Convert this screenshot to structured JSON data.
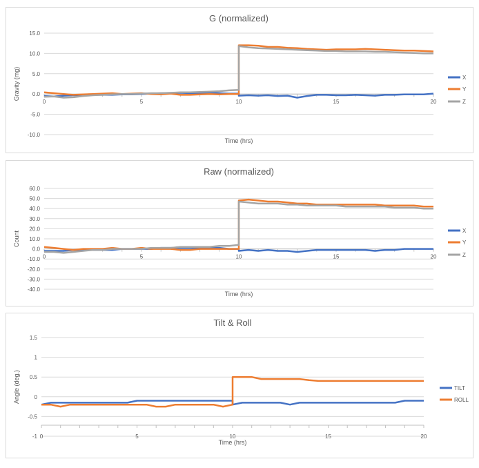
{
  "chart_data": [
    {
      "type": "line",
      "title": "G (normalized)",
      "xlabel": "Time (hrs)",
      "ylabel": "Gravity (mg)",
      "xlim": [
        0,
        20
      ],
      "ylim": [
        -10,
        15
      ],
      "xticks": [
        0,
        5,
        10,
        15,
        20
      ],
      "yticks": [
        "15.0",
        "10.0",
        "5.0",
        "0.0",
        "-5.0",
        "-10.0"
      ],
      "grid": true,
      "legend": "right",
      "x": [
        0,
        0.5,
        1,
        1.5,
        2,
        2.5,
        3,
        3.5,
        4,
        4.5,
        5,
        5.5,
        6,
        6.5,
        7,
        7.5,
        8,
        8.5,
        9,
        9.5,
        10,
        10,
        10.5,
        11,
        11.5,
        12,
        12.5,
        13,
        13.5,
        14,
        14.5,
        15,
        15.5,
        16,
        16.5,
        17,
        17.5,
        18,
        18.5,
        19,
        19.5,
        20
      ],
      "series": [
        {
          "name": "X",
          "color": "#4472c4",
          "values": [
            -0.5,
            -0.6,
            -0.4,
            -0.3,
            -0.3,
            -0.2,
            -0.2,
            -0.2,
            -0.1,
            -0.1,
            0.0,
            0.1,
            0.2,
            0.2,
            0.3,
            0.2,
            0.2,
            0.3,
            0.2,
            0.1,
            0.1,
            -0.4,
            -0.3,
            -0.4,
            -0.3,
            -0.5,
            -0.4,
            -0.9,
            -0.5,
            -0.2,
            -0.2,
            -0.3,
            -0.3,
            -0.2,
            -0.3,
            -0.4,
            -0.2,
            -0.2,
            -0.1,
            -0.1,
            -0.1,
            0.1
          ]
        },
        {
          "name": "Y",
          "color": "#ed7d31",
          "values": [
            0.4,
            0.2,
            0.0,
            -0.2,
            -0.1,
            0.0,
            0.1,
            0.2,
            0.0,
            0.1,
            0.2,
            0.0,
            -0.1,
            0.1,
            -0.2,
            -0.2,
            -0.1,
            0.0,
            -0.1,
            0.0,
            0.0,
            12.0,
            12.0,
            11.9,
            11.6,
            11.6,
            11.4,
            11.3,
            11.1,
            11.0,
            10.9,
            11.0,
            11.0,
            11.0,
            11.1,
            11.0,
            10.9,
            10.8,
            10.7,
            10.7,
            10.6,
            10.5
          ]
        },
        {
          "name": "Z",
          "color": "#a5a5a5",
          "values": [
            -0.7,
            -0.6,
            -0.9,
            -0.8,
            -0.5,
            -0.3,
            -0.2,
            -0.1,
            0.0,
            0.0,
            0.1,
            0.2,
            0.2,
            0.3,
            0.4,
            0.4,
            0.5,
            0.6,
            0.7,
            0.9,
            1.0,
            11.8,
            11.5,
            11.3,
            11.2,
            11.1,
            11.0,
            10.9,
            10.8,
            10.7,
            10.6,
            10.6,
            10.5,
            10.5,
            10.5,
            10.4,
            10.4,
            10.3,
            10.2,
            10.1,
            10.0,
            10.0
          ]
        }
      ]
    },
    {
      "type": "line",
      "title": "Raw (normalized)",
      "xlabel": "Time (hrs)",
      "ylabel": "Count",
      "xlim": [
        0,
        20
      ],
      "ylim": [
        -40,
        60
      ],
      "xticks": [
        0,
        5,
        10,
        15,
        20
      ],
      "yticks": [
        "60.0",
        "50.0",
        "40.0",
        "30.0",
        "20.0",
        "10.0",
        "0.0",
        "-10.0",
        "-20.0",
        "-30.0",
        "-40.0"
      ],
      "grid": true,
      "legend": "right",
      "x": [
        0,
        0.5,
        1,
        1.5,
        2,
        2.5,
        3,
        3.5,
        4,
        4.5,
        5,
        5.5,
        6,
        6.5,
        7,
        7.5,
        8,
        8.5,
        9,
        9.5,
        10,
        10,
        10.5,
        11,
        11.5,
        12,
        12.5,
        13,
        13.5,
        14,
        14.5,
        15,
        15.5,
        16,
        16.5,
        17,
        17.5,
        18,
        18.5,
        19,
        19.5,
        20
      ],
      "series": [
        {
          "name": "X",
          "color": "#4472c4",
          "values": [
            -2,
            -2,
            -2,
            -1,
            -1,
            -1,
            -1,
            -1,
            0,
            0,
            0,
            0,
            1,
            1,
            1,
            1,
            1,
            1,
            1,
            0,
            0,
            -2,
            -1,
            -2,
            -1,
            -2,
            -2,
            -3,
            -2,
            -1,
            -1,
            -1,
            -1,
            -1,
            -1,
            -2,
            -1,
            -1,
            0,
            0,
            0,
            0
          ]
        },
        {
          "name": "Y",
          "color": "#ed7d31",
          "values": [
            2,
            1,
            0,
            -1,
            0,
            0,
            0,
            1,
            0,
            0,
            1,
            0,
            0,
            0,
            -1,
            -1,
            0,
            0,
            0,
            0,
            0,
            48,
            49,
            48,
            47,
            47,
            46,
            45,
            45,
            44,
            44,
            44,
            44,
            44,
            44,
            44,
            43,
            43,
            43,
            43,
            42,
            42
          ]
        },
        {
          "name": "Z",
          "color": "#a5a5a5",
          "values": [
            -3,
            -3,
            -4,
            -3,
            -2,
            -1,
            -1,
            0,
            0,
            0,
            0,
            1,
            1,
            1,
            2,
            2,
            2,
            2,
            3,
            3,
            4,
            47,
            46,
            45,
            45,
            45,
            44,
            44,
            43,
            43,
            43,
            43,
            42,
            42,
            42,
            42,
            42,
            41,
            41,
            41,
            40,
            40
          ]
        }
      ]
    },
    {
      "type": "line",
      "title": "Tilt & Roll",
      "xlabel": "Time (hrs)",
      "ylabel": "Angle (deg.)",
      "xlim": [
        0,
        20
      ],
      "ylim": [
        -1,
        1.5
      ],
      "xticks": [
        0,
        5,
        10,
        15,
        20
      ],
      "yticks": [
        "1.5",
        "1",
        "0.5",
        "0",
        "-0.5",
        "-1"
      ],
      "grid": true,
      "legend": "right",
      "x": [
        0,
        0.5,
        1,
        1.5,
        2,
        2.5,
        3,
        3.5,
        4,
        4.5,
        5,
        5.5,
        6,
        6.5,
        7,
        7.5,
        8,
        8.5,
        9,
        9.5,
        10,
        10,
        10.5,
        11,
        11.5,
        12,
        12.5,
        13,
        13.5,
        14,
        14.5,
        15,
        15.5,
        16,
        16.5,
        17,
        17.5,
        18,
        18.5,
        19,
        19.5,
        20
      ],
      "series": [
        {
          "name": "TILT",
          "color": "#4472c4",
          "values": [
            -0.2,
            -0.15,
            -0.15,
            -0.15,
            -0.15,
            -0.15,
            -0.15,
            -0.15,
            -0.15,
            -0.15,
            -0.1,
            -0.1,
            -0.1,
            -0.1,
            -0.1,
            -0.1,
            -0.1,
            -0.1,
            -0.1,
            -0.1,
            -0.1,
            -0.2,
            -0.15,
            -0.15,
            -0.15,
            -0.15,
            -0.15,
            -0.2,
            -0.15,
            -0.15,
            -0.15,
            -0.15,
            -0.15,
            -0.15,
            -0.15,
            -0.15,
            -0.15,
            -0.15,
            -0.15,
            -0.1,
            -0.1,
            -0.1
          ]
        },
        {
          "name": "ROLL",
          "color": "#ed7d31",
          "values": [
            -0.2,
            -0.2,
            -0.25,
            -0.2,
            -0.2,
            -0.2,
            -0.2,
            -0.2,
            -0.2,
            -0.2,
            -0.2,
            -0.2,
            -0.25,
            -0.25,
            -0.2,
            -0.2,
            -0.2,
            -0.2,
            -0.2,
            -0.25,
            -0.2,
            0.5,
            0.5,
            0.5,
            0.45,
            0.45,
            0.45,
            0.45,
            0.45,
            0.42,
            0.4,
            0.4,
            0.4,
            0.4,
            0.4,
            0.4,
            0.4,
            0.4,
            0.4,
            0.4,
            0.4,
            0.4
          ]
        }
      ]
    }
  ]
}
